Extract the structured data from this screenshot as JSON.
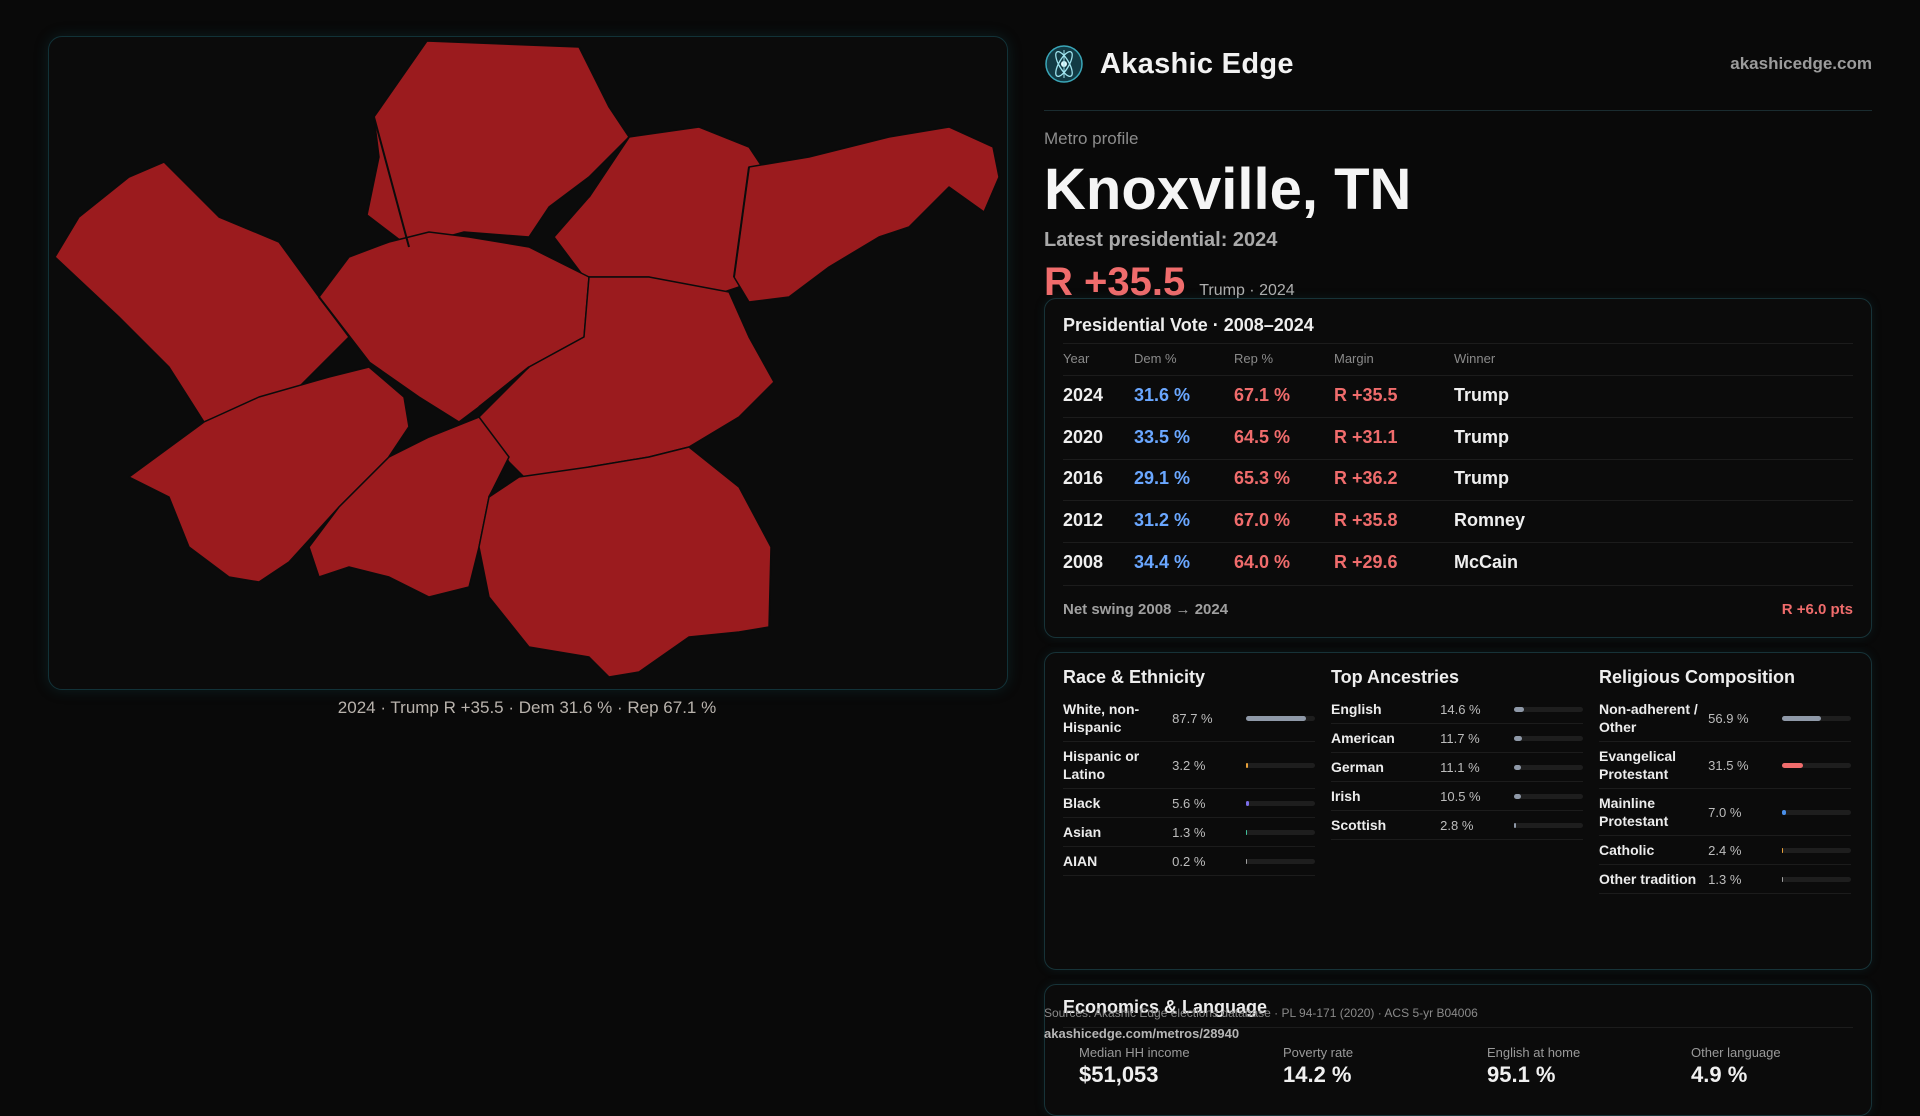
{
  "brand": {
    "name": "Akashic Edge",
    "url": "akashicedge.com",
    "logo_icon": "atom-star-logo-icon"
  },
  "map": {
    "caption": "2024 · Trump R +35.5 · Dem 31.6 % · Rep 67.1 %",
    "fill_color": "#9b1b1e"
  },
  "profile": {
    "eyebrow": "Metro profile",
    "title": "Knoxville, TN",
    "latest": "Latest presidential: 2024",
    "margin": "R +35.5",
    "margin_sub": "Trump · 2024"
  },
  "vote": {
    "title": "Presidential Vote · 2008–2024",
    "headers": {
      "year": "Year",
      "dem": "Dem %",
      "rep": "Rep %",
      "margin": "Margin",
      "winner": "Winner"
    },
    "rows": [
      {
        "year": "2024",
        "dem": "31.6 %",
        "rep": "67.1 %",
        "margin": "R +35.5",
        "winner": "Trump"
      },
      {
        "year": "2020",
        "dem": "33.5 %",
        "rep": "64.5 %",
        "margin": "R +31.1",
        "winner": "Trump"
      },
      {
        "year": "2016",
        "dem": "29.1 %",
        "rep": "65.3 %",
        "margin": "R +36.2",
        "winner": "Trump"
      },
      {
        "year": "2012",
        "dem": "31.2 %",
        "rep": "67.0 %",
        "margin": "R +35.8",
        "winner": "Romney"
      },
      {
        "year": "2008",
        "dem": "34.4 %",
        "rep": "64.0 %",
        "margin": "R +29.6",
        "winner": "McCain"
      }
    ],
    "swing_label": "Net swing 2008 → 2024",
    "swing_value": "R +6.0 pts"
  },
  "race": {
    "title": "Race & Ethnicity",
    "items": [
      {
        "label": "White, non-Hispanic",
        "value": "87.7 %",
        "share": 0.877,
        "color": "#8f99a8"
      },
      {
        "label": "Hispanic or Latino",
        "value": "3.2 %",
        "share": 0.032,
        "color": "#e8a13a"
      },
      {
        "label": "Black",
        "value": "5.6 %",
        "share": 0.056,
        "color": "#7b6ee8"
      },
      {
        "label": "Asian",
        "value": "1.3 %",
        "share": 0.013,
        "color": "#3fbf9a"
      },
      {
        "label": "AIAN",
        "value": "0.2 %",
        "share": 0.002,
        "color": "#a0a0a0"
      }
    ]
  },
  "ancestry": {
    "title": "Top Ancestries",
    "items": [
      {
        "label": "English",
        "value": "14.6 %",
        "share": 0.146,
        "color": "#8f99a8"
      },
      {
        "label": "American",
        "value": "11.7 %",
        "share": 0.117,
        "color": "#8f99a8"
      },
      {
        "label": "German",
        "value": "11.1 %",
        "share": 0.111,
        "color": "#8f99a8"
      },
      {
        "label": "Irish",
        "value": "10.5 %",
        "share": 0.105,
        "color": "#8f99a8"
      },
      {
        "label": "Scottish",
        "value": "2.8 %",
        "share": 0.028,
        "color": "#8f99a8"
      }
    ]
  },
  "religion": {
    "title": "Religious Composition",
    "items": [
      {
        "label": "Non-adherent / Other",
        "value": "56.9 %",
        "share": 0.569,
        "color": "#8f99a8"
      },
      {
        "label": "Evangelical Protestant",
        "value": "31.5 %",
        "share": 0.315,
        "color": "#f06c6c"
      },
      {
        "label": "Mainline Protestant",
        "value": "7.0 %",
        "share": 0.07,
        "color": "#4a8fe8"
      },
      {
        "label": "Catholic",
        "value": "2.4 %",
        "share": 0.024,
        "color": "#e8a13a"
      },
      {
        "label": "Other tradition",
        "value": "1.3 %",
        "share": 0.013,
        "color": "#a0a0a0"
      }
    ]
  },
  "economics": {
    "title": "Economics & Language",
    "items": [
      {
        "label": "Median HH income",
        "value": "$51,053"
      },
      {
        "label": "Poverty rate",
        "value": "14.2 %"
      },
      {
        "label": "English at home",
        "value": "95.1 %"
      },
      {
        "label": "Other language",
        "value": "4.9 %"
      }
    ]
  },
  "footer": {
    "sources": "Sources: Akashic Edge elections database · PL 94-171 (2020) · ACS 5-yr B04006",
    "url": "akashicedge.com/metros/28940"
  }
}
